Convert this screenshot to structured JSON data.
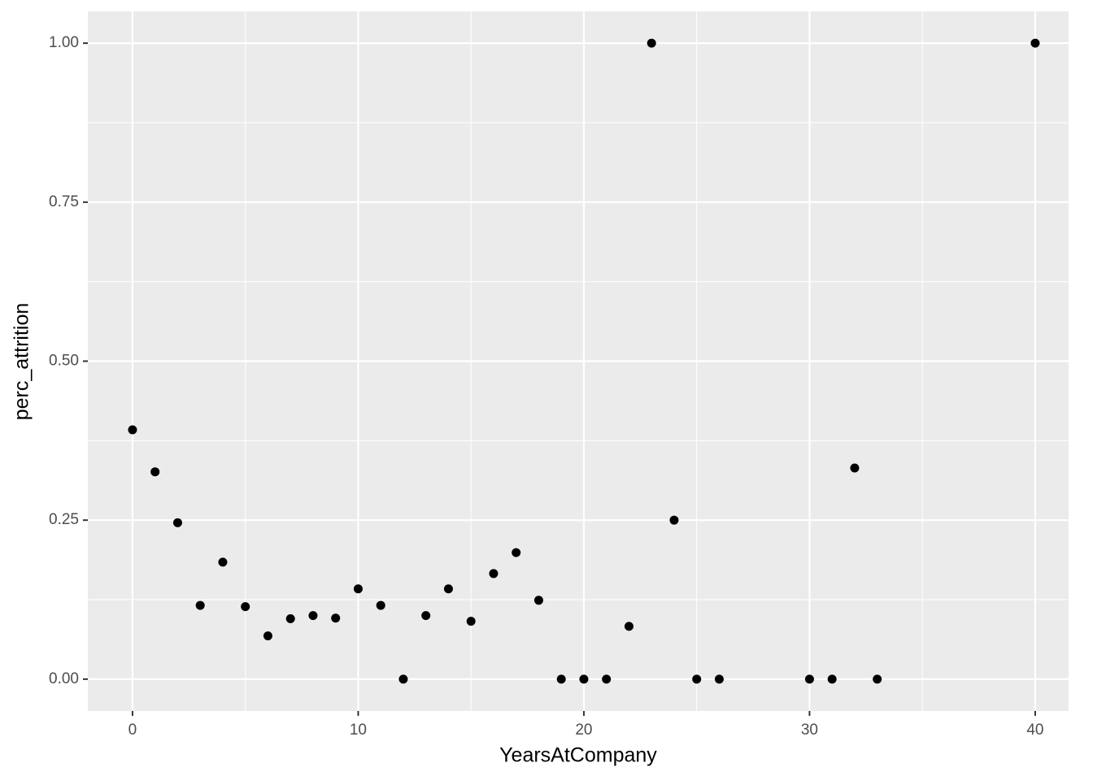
{
  "chart_data": {
    "type": "scatter",
    "x_label": "YearsAtCompany",
    "y_label": "perc_attrition",
    "x": [
      0,
      1,
      2,
      3,
      4,
      5,
      6,
      7,
      8,
      9,
      10,
      11,
      12,
      13,
      14,
      15,
      16,
      17,
      18,
      19,
      20,
      21,
      22,
      23,
      24,
      25,
      26,
      30,
      31,
      32,
      33,
      40
    ],
    "values": [
      0.392,
      0.326,
      0.246,
      0.116,
      0.184,
      0.114,
      0.068,
      0.095,
      0.1,
      0.096,
      0.142,
      0.116,
      0,
      0.1,
      0.142,
      0.091,
      0.166,
      0.199,
      0.124,
      0,
      0,
      0,
      0.083,
      1,
      0.25,
      0,
      0,
      0,
      0,
      0.332,
      0,
      1
    ],
    "color": "#000000",
    "panel_color": "#ebebeb",
    "xlim": [
      -1.98,
      41.48
    ],
    "ylim": [
      -0.05,
      1.05
    ],
    "xticks": [
      0,
      10,
      20,
      30,
      40
    ],
    "yticks": [
      {
        "value": 0,
        "label": "0.00"
      },
      {
        "value": 0.25,
        "label": "0.25"
      },
      {
        "value": 0.5,
        "label": "0.50"
      },
      {
        "value": 0.75,
        "label": "0.75"
      },
      {
        "value": 1,
        "label": "1.00"
      }
    ],
    "grid": true,
    "minor_grid": true
  }
}
